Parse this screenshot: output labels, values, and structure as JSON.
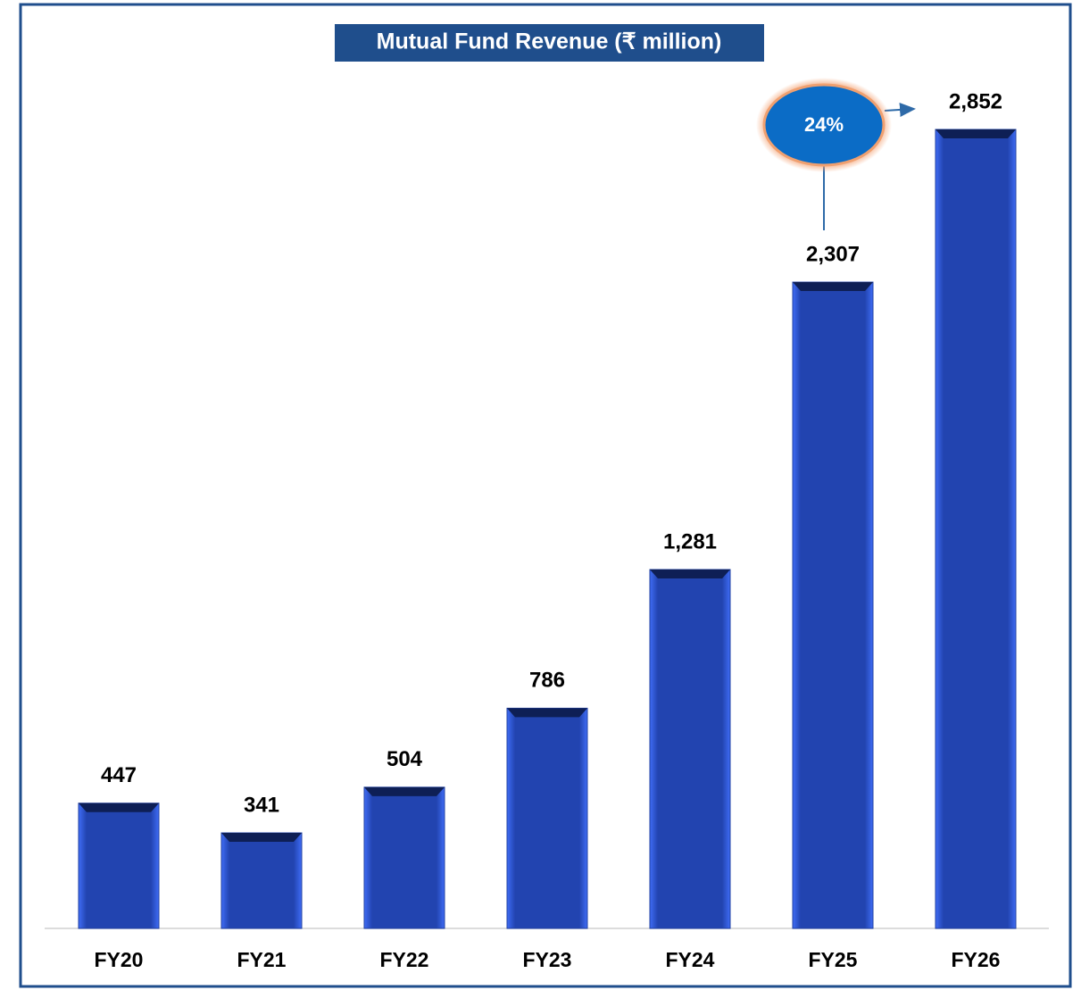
{
  "chart_data": {
    "type": "bar",
    "title": "Mutual Fund Revenue (₹ million)",
    "categories": [
      "FY20",
      "FY21",
      "FY22",
      "FY23",
      "FY24",
      "FY25",
      "FY26"
    ],
    "values": [
      447,
      341,
      504,
      786,
      1281,
      2307,
      2852
    ],
    "value_labels": [
      "447",
      "341",
      "504",
      "786",
      "1,281",
      "2,307",
      "2,852"
    ],
    "color": "#2141a3",
    "annotations": [
      {
        "text": "24%"
      }
    ]
  }
}
